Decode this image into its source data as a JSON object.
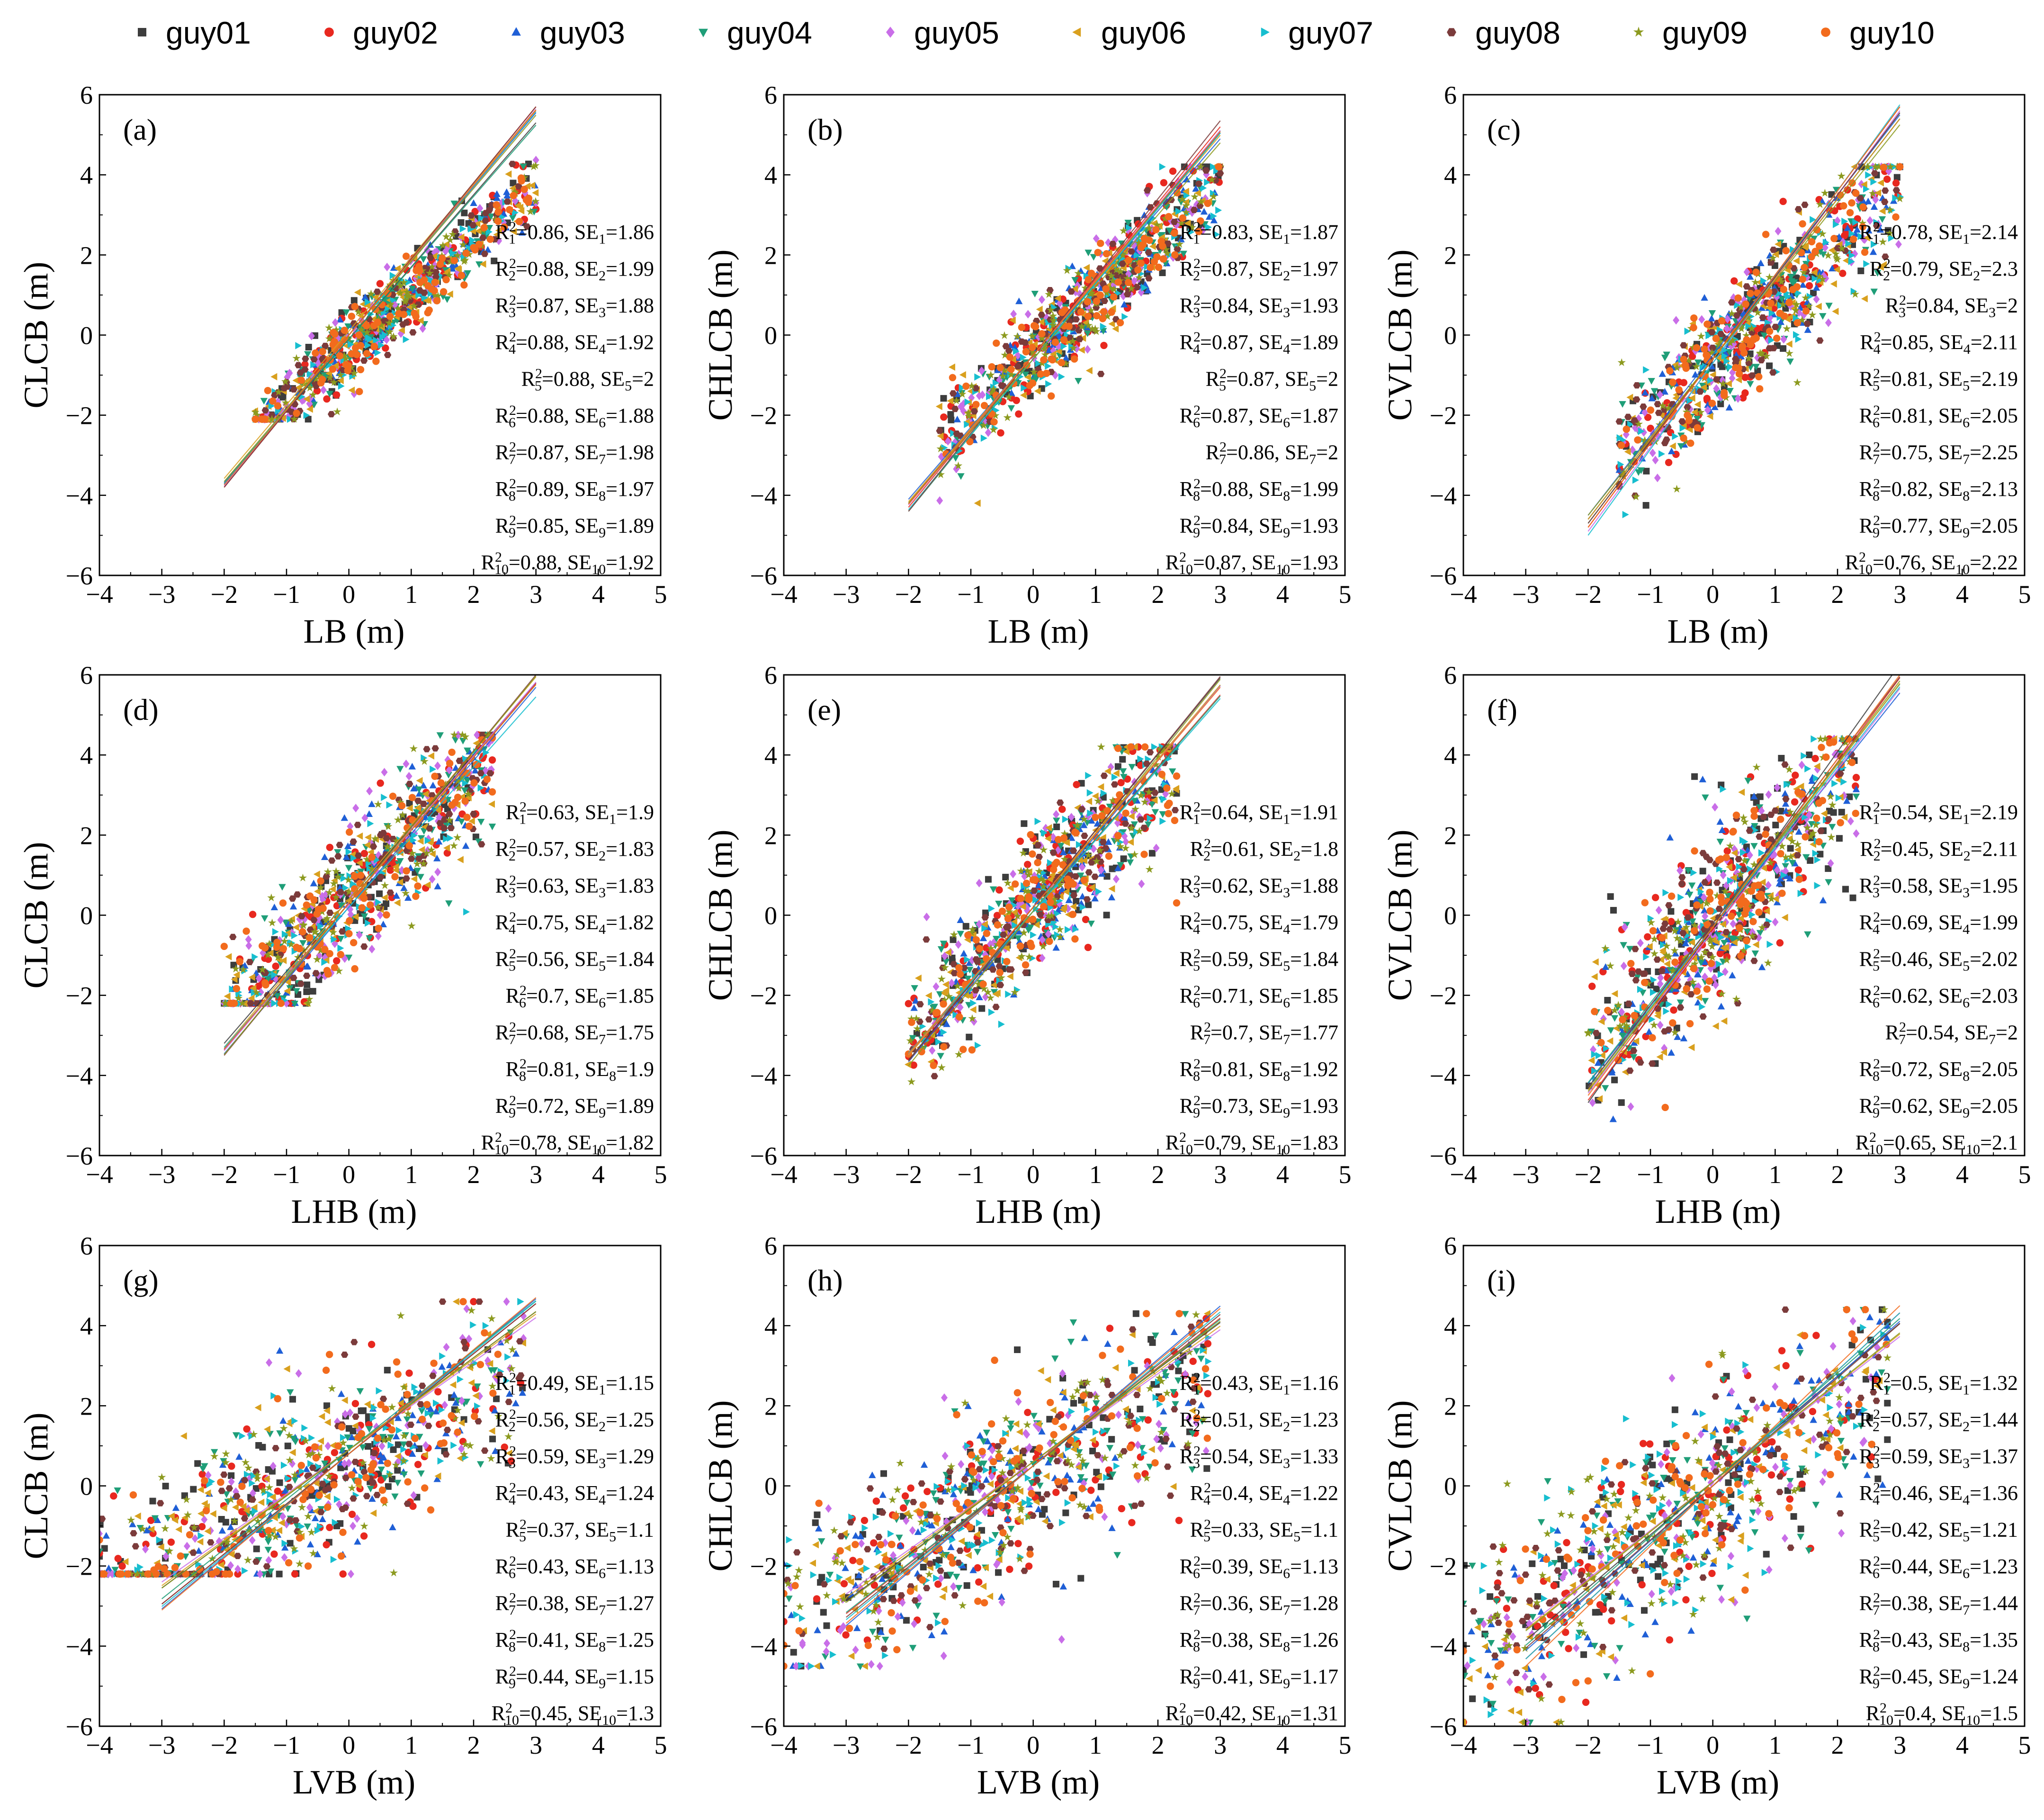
{
  "legend": {
    "series": [
      {
        "name": "guy01",
        "color": "#3d3d3d",
        "marker": "square"
      },
      {
        "name": "guy02",
        "color": "#e8281f",
        "marker": "circle"
      },
      {
        "name": "guy03",
        "color": "#1f5fd6",
        "marker": "triangle-up"
      },
      {
        "name": "guy04",
        "color": "#1f9e78",
        "marker": "triangle-down"
      },
      {
        "name": "guy05",
        "color": "#c96ee8",
        "marker": "diamond"
      },
      {
        "name": "guy06",
        "color": "#d9a01e",
        "marker": "triangle-left"
      },
      {
        "name": "guy07",
        "color": "#17becf",
        "marker": "triangle-right"
      },
      {
        "name": "guy08",
        "color": "#7b3b3b",
        "marker": "hexagon"
      },
      {
        "name": "guy09",
        "color": "#8c9a1f",
        "marker": "star"
      },
      {
        "name": "guy10",
        "color": "#f26b1d",
        "marker": "circle"
      }
    ]
  },
  "chart_data": [
    {
      "panel": "(a)",
      "type": "scatter",
      "xlabel": "LB (m)",
      "ylabel": "CLCB (m)",
      "xlim": [
        -4,
        5
      ],
      "ylim": [
        -6,
        6
      ],
      "xticks": [
        -4,
        -3,
        -2,
        -1,
        0,
        1,
        2,
        3,
        4,
        5
      ],
      "yticks": [
        -6,
        -4,
        -2,
        0,
        2,
        4,
        6
      ],
      "cloud": {
        "x_range": [
          -1.5,
          3.0
        ],
        "slope": 1.35,
        "intercept": -0.3,
        "noise": 0.45,
        "clip": [
          -2.1,
          4.5
        ]
      },
      "fit_x_range": [
        -2,
        3
      ],
      "fits": [
        {
          "R2": "0.86",
          "SE": "1.86",
          "slope": 1.8,
          "intercept": -0.1
        },
        {
          "R2": "0.88",
          "SE": "1.99",
          "slope": 1.9,
          "intercept": 0.0
        },
        {
          "R2": "0.87",
          "SE": "1.88",
          "slope": 1.85,
          "intercept": 0.0
        },
        {
          "R2": "0.88",
          "SE": "1.92",
          "slope": 1.78,
          "intercept": -0.1
        },
        {
          "R2": "0.88",
          "SE": "2",
          "slope": 1.88,
          "intercept": 0.0
        },
        {
          "R2": "0.88",
          "SE": "1.88",
          "slope": 1.84,
          "intercept": 0.1
        },
        {
          "R2": "0.87",
          "SE": "1.98",
          "slope": 1.86,
          "intercept": 0.0
        },
        {
          "R2": "0.89",
          "SE": "1.97",
          "slope": 1.9,
          "intercept": 0.0
        },
        {
          "R2": "0.85",
          "SE": "1.89",
          "slope": 1.83,
          "intercept": 0.0
        },
        {
          "R2": "0.88",
          "SE": "1.92",
          "slope": 1.87,
          "intercept": 0.0
        }
      ]
    },
    {
      "panel": "(b)",
      "type": "scatter",
      "xlabel": "LB (m)",
      "ylabel": "CHLCB (m)",
      "xlim": [
        -4,
        5
      ],
      "ylim": [
        -6,
        6
      ],
      "xticks": [
        -4,
        -3,
        -2,
        -1,
        0,
        1,
        2,
        3,
        4,
        5
      ],
      "yticks": [
        -6,
        -4,
        -2,
        0,
        2,
        4,
        6
      ],
      "cloud": {
        "x_range": [
          -1.5,
          3.0
        ],
        "slope": 1.45,
        "intercept": -0.5,
        "noise": 0.6,
        "clip": [
          -4.5,
          4.2
        ]
      },
      "fit_x_range": [
        -2,
        3
      ],
      "fits": [
        {
          "R2": "0.83",
          "SE": "1.87",
          "slope": 1.85,
          "intercept": -0.5
        },
        {
          "R2": "0.87",
          "SE": "1.97",
          "slope": 1.9,
          "intercept": -0.5
        },
        {
          "R2": "0.84",
          "SE": "1.93",
          "slope": 1.8,
          "intercept": -0.5
        },
        {
          "R2": "0.87",
          "SE": "1.89",
          "slope": 1.9,
          "intercept": -0.6
        },
        {
          "R2": "0.87",
          "SE": "2",
          "slope": 1.87,
          "intercept": -0.5
        },
        {
          "R2": "0.87",
          "SE": "1.87",
          "slope": 1.83,
          "intercept": -0.5
        },
        {
          "R2": "0.86",
          "SE": "2",
          "slope": 1.88,
          "intercept": -0.6
        },
        {
          "R2": "0.88",
          "SE": "1.99",
          "slope": 1.95,
          "intercept": -0.5
        },
        {
          "R2": "0.84",
          "SE": "1.93",
          "slope": 1.8,
          "intercept": -0.6
        },
        {
          "R2": "0.87",
          "SE": "1.93",
          "slope": 1.86,
          "intercept": -0.5
        }
      ]
    },
    {
      "panel": "(c)",
      "type": "scatter",
      "xlabel": "LB (m)",
      "ylabel": "CVLCB (m)",
      "xlim": [
        -4,
        5
      ],
      "ylim": [
        -6,
        6
      ],
      "xticks": [
        -4,
        -3,
        -2,
        -1,
        0,
        1,
        2,
        3,
        4,
        5
      ],
      "yticks": [
        -6,
        -4,
        -2,
        0,
        2,
        4,
        6
      ],
      "cloud": {
        "x_range": [
          -1.5,
          3.0
        ],
        "slope": 1.5,
        "intercept": -0.7,
        "noise": 0.8,
        "clip": [
          -5.9,
          4.2
        ]
      },
      "fit_x_range": [
        -2,
        3
      ],
      "fits": [
        {
          "R2": "0.78",
          "SE": "2.14",
          "slope": 2.0,
          "intercept": -0.6
        },
        {
          "R2": "0.79",
          "SE": "2.3",
          "slope": 2.1,
          "intercept": -0.6
        },
        {
          "R2": "0.84",
          "SE": "2",
          "slope": 2.0,
          "intercept": -0.5
        },
        {
          "R2": "0.85",
          "SE": "2.11",
          "slope": 2.05,
          "intercept": -0.6
        },
        {
          "R2": "0.81",
          "SE": "2.19",
          "slope": 2.1,
          "intercept": -0.7
        },
        {
          "R2": "0.81",
          "SE": "2.05",
          "slope": 2.0,
          "intercept": -0.6
        },
        {
          "R2": "0.75",
          "SE": "2.25",
          "slope": 2.15,
          "intercept": -0.7
        },
        {
          "R2": "0.82",
          "SE": "2.13",
          "slope": 2.05,
          "intercept": -0.6
        },
        {
          "R2": "0.77",
          "SE": "2.05",
          "slope": 1.95,
          "intercept": -0.6
        },
        {
          "R2": "0.76",
          "SE": "2.22",
          "slope": 2.1,
          "intercept": -0.6
        }
      ]
    },
    {
      "panel": "(d)",
      "type": "scatter",
      "xlabel": "LHB (m)",
      "ylabel": "CLCB (m)",
      "xlim": [
        -4,
        5
      ],
      "ylim": [
        -6,
        6
      ],
      "xticks": [
        -4,
        -3,
        -2,
        -1,
        0,
        1,
        2,
        3,
        4,
        5
      ],
      "yticks": [
        -6,
        -4,
        -2,
        0,
        2,
        4,
        6
      ],
      "cloud": {
        "x_range": [
          -2.0,
          2.3
        ],
        "slope": 1.55,
        "intercept": 0.4,
        "noise": 0.85,
        "clip": [
          -2.2,
          4.5
        ]
      },
      "fit_x_range": [
        -2,
        3
      ],
      "fits": [
        {
          "R2": "0.63",
          "SE": "1.9",
          "slope": 1.8,
          "intercept": 0.4
        },
        {
          "R2": "0.57",
          "SE": "1.83",
          "slope": 1.83,
          "intercept": 0.3
        },
        {
          "R2": "0.63",
          "SE": "1.83",
          "slope": 1.83,
          "intercept": 0.2
        },
        {
          "R2": "0.75",
          "SE": "1.82",
          "slope": 1.82,
          "intercept": 0.3
        },
        {
          "R2": "0.56",
          "SE": "1.84",
          "slope": 1.84,
          "intercept": 0.3
        },
        {
          "R2": "0.7",
          "SE": "1.85",
          "slope": 1.85,
          "intercept": 0.4
        },
        {
          "R2": "0.68",
          "SE": "1.75",
          "slope": 1.75,
          "intercept": 0.2
        },
        {
          "R2": "0.81",
          "SE": "1.9",
          "slope": 1.9,
          "intercept": 0.3
        },
        {
          "R2": "0.72",
          "SE": "1.89",
          "slope": 1.89,
          "intercept": 0.3
        },
        {
          "R2": "0.78",
          "SE": "1.82",
          "slope": 1.82,
          "intercept": 0.3
        }
      ]
    },
    {
      "panel": "(e)",
      "type": "scatter",
      "xlabel": "LHB (m)",
      "ylabel": "CHLCB (m)",
      "xlim": [
        -4,
        5
      ],
      "ylim": [
        -6,
        6
      ],
      "xticks": [
        -4,
        -3,
        -2,
        -1,
        0,
        1,
        2,
        3,
        4,
        5
      ],
      "yticks": [
        -6,
        -4,
        -2,
        0,
        2,
        4,
        6
      ],
      "cloud": {
        "x_range": [
          -2.0,
          2.3
        ],
        "slope": 1.6,
        "intercept": 0.2,
        "noise": 0.85,
        "clip": [
          -4.5,
          4.2
        ]
      },
      "fit_x_range": [
        -2,
        3
      ],
      "fits": [
        {
          "R2": "0.64",
          "SE": "1.91",
          "slope": 1.91,
          "intercept": 0.2
        },
        {
          "R2": "0.61",
          "SE": "1.8",
          "slope": 1.8,
          "intercept": 0.1
        },
        {
          "R2": "0.62",
          "SE": "1.88",
          "slope": 1.88,
          "intercept": 0.1
        },
        {
          "R2": "0.75",
          "SE": "1.79",
          "slope": 1.79,
          "intercept": 0.1
        },
        {
          "R2": "0.59",
          "SE": "1.84",
          "slope": 1.84,
          "intercept": 0.2
        },
        {
          "R2": "0.71",
          "SE": "1.85",
          "slope": 1.85,
          "intercept": 0.2
        },
        {
          "R2": "0.7",
          "SE": "1.77",
          "slope": 1.77,
          "intercept": 0.1
        },
        {
          "R2": "0.81",
          "SE": "1.92",
          "slope": 1.92,
          "intercept": 0.2
        },
        {
          "R2": "0.73",
          "SE": "1.93",
          "slope": 1.93,
          "intercept": 0.1
        },
        {
          "R2": "0.79",
          "SE": "1.83",
          "slope": 1.83,
          "intercept": 0.2
        }
      ]
    },
    {
      "panel": "(f)",
      "type": "scatter",
      "xlabel": "LHB (m)",
      "ylabel": "CVLCB (m)",
      "xlim": [
        -4,
        5
      ],
      "ylim": [
        -6,
        6
      ],
      "xticks": [
        -4,
        -3,
        -2,
        -1,
        0,
        1,
        2,
        3,
        4,
        5
      ],
      "yticks": [
        -6,
        -4,
        -2,
        0,
        2,
        4,
        6
      ],
      "cloud": {
        "x_range": [
          -2.0,
          2.3
        ],
        "slope": 1.65,
        "intercept": -0.2,
        "noise": 1.1,
        "clip": [
          -5.9,
          4.4
        ]
      },
      "fit_x_range": [
        -2,
        3
      ],
      "fits": [
        {
          "R2": "0.54",
          "SE": "2.19",
          "slope": 2.19,
          "intercept": -0.3
        },
        {
          "R2": "0.45",
          "SE": "2.11",
          "slope": 2.11,
          "intercept": -0.4
        },
        {
          "R2": "0.58",
          "SE": "1.95",
          "slope": 1.95,
          "intercept": -0.3
        },
        {
          "R2": "0.69",
          "SE": "1.99",
          "slope": 1.99,
          "intercept": -0.2
        },
        {
          "R2": "0.46",
          "SE": "2.02",
          "slope": 2.02,
          "intercept": -0.4
        },
        {
          "R2": "0.62",
          "SE": "2.03",
          "slope": 2.03,
          "intercept": -0.3
        },
        {
          "R2": "0.54",
          "SE": "2",
          "slope": 2.0,
          "intercept": -0.3
        },
        {
          "R2": "0.72",
          "SE": "2.05",
          "slope": 2.05,
          "intercept": -0.2
        },
        {
          "R2": "0.62",
          "SE": "2.05",
          "slope": 2.05,
          "intercept": -0.3
        },
        {
          "R2": "0.65",
          "SE": "2.1",
          "slope": 2.1,
          "intercept": -0.3
        }
      ]
    },
    {
      "panel": "(g)",
      "type": "scatter",
      "xlabel": "LVB (m)",
      "ylabel": "CLCB (m)",
      "xlim": [
        -4,
        5
      ],
      "ylim": [
        -6,
        6
      ],
      "xticks": [
        -4,
        -3,
        -2,
        -1,
        0,
        1,
        2,
        3,
        4,
        5
      ],
      "yticks": [
        -6,
        -4,
        -2,
        0,
        2,
        4,
        6
      ],
      "cloud": {
        "x_range": [
          -4.0,
          2.8
        ],
        "slope": 0.85,
        "intercept": 0.6,
        "noise": 1.15,
        "clip": [
          -2.2,
          4.6
        ]
      },
      "fit_x_range": [
        -3,
        3
      ],
      "fits": [
        {
          "R2": "0.49",
          "SE": "1.15",
          "slope": 1.15,
          "intercept": 0.9
        },
        {
          "R2": "0.56",
          "SE": "1.25",
          "slope": 1.25,
          "intercept": 0.8
        },
        {
          "R2": "0.59",
          "SE": "1.29",
          "slope": 1.29,
          "intercept": 0.8
        },
        {
          "R2": "0.43",
          "SE": "1.24",
          "slope": 1.24,
          "intercept": 0.9
        },
        {
          "R2": "0.37",
          "SE": "1.1",
          "slope": 1.1,
          "intercept": 0.9
        },
        {
          "R2": "0.43",
          "SE": "1.13",
          "slope": 1.13,
          "intercept": 0.9
        },
        {
          "R2": "0.38",
          "SE": "1.27",
          "slope": 1.27,
          "intercept": 0.8
        },
        {
          "R2": "0.41",
          "SE": "1.25",
          "slope": 1.25,
          "intercept": 0.8
        },
        {
          "R2": "0.44",
          "SE": "1.15",
          "slope": 1.15,
          "intercept": 0.9
        },
        {
          "R2": "0.45",
          "SE": "1.3",
          "slope": 1.3,
          "intercept": 0.8
        }
      ]
    },
    {
      "panel": "(h)",
      "type": "scatter",
      "xlabel": "LVB (m)",
      "ylabel": "CHLCB (m)",
      "xlim": [
        -4,
        5
      ],
      "ylim": [
        -6,
        6
      ],
      "xticks": [
        -4,
        -3,
        -2,
        -1,
        0,
        1,
        2,
        3,
        4,
        5
      ],
      "yticks": [
        -6,
        -4,
        -2,
        0,
        2,
        4,
        6
      ],
      "cloud": {
        "x_range": [
          -4.0,
          2.8
        ],
        "slope": 0.9,
        "intercept": 0.2,
        "noise": 1.2,
        "clip": [
          -4.5,
          4.3
        ]
      },
      "fit_x_range": [
        -3,
        3
      ],
      "fits": [
        {
          "R2": "0.43",
          "SE": "1.16",
          "slope": 1.16,
          "intercept": 0.6
        },
        {
          "R2": "0.51",
          "SE": "1.23",
          "slope": 1.23,
          "intercept": 0.5
        },
        {
          "R2": "0.54",
          "SE": "1.33",
          "slope": 1.33,
          "intercept": 0.5
        },
        {
          "R2": "0.4",
          "SE": "1.22",
          "slope": 1.22,
          "intercept": 0.5
        },
        {
          "R2": "0.33",
          "SE": "1.1",
          "slope": 1.1,
          "intercept": 0.6
        },
        {
          "R2": "0.39",
          "SE": "1.13",
          "slope": 1.13,
          "intercept": 0.6
        },
        {
          "R2": "0.36",
          "SE": "1.28",
          "slope": 1.28,
          "intercept": 0.5
        },
        {
          "R2": "0.38",
          "SE": "1.26",
          "slope": 1.26,
          "intercept": 0.5
        },
        {
          "R2": "0.41",
          "SE": "1.17",
          "slope": 1.17,
          "intercept": 0.6
        },
        {
          "R2": "0.42",
          "SE": "1.31",
          "slope": 1.31,
          "intercept": 0.5
        }
      ]
    },
    {
      "panel": "(i)",
      "type": "scatter",
      "xlabel": "LVB (m)",
      "ylabel": "CVLCB (m)",
      "xlim": [
        -4,
        5
      ],
      "ylim": [
        -6,
        6
      ],
      "xticks": [
        -4,
        -3,
        -2,
        -1,
        0,
        1,
        2,
        3,
        4,
        5
      ],
      "yticks": [
        -6,
        -4,
        -2,
        0,
        2,
        4,
        6
      ],
      "cloud": {
        "x_range": [
          -4.0,
          2.8
        ],
        "slope": 1.05,
        "intercept": -0.2,
        "noise": 1.3,
        "clip": [
          -5.9,
          4.4
        ]
      },
      "fit_x_range": [
        -3,
        3
      ],
      "fits": [
        {
          "R2": "0.5",
          "SE": "1.32",
          "slope": 1.32,
          "intercept": 0.1
        },
        {
          "R2": "0.57",
          "SE": "1.44",
          "slope": 1.44,
          "intercept": 0.0
        },
        {
          "R2": "0.59",
          "SE": "1.37",
          "slope": 1.37,
          "intercept": 0.0
        },
        {
          "R2": "0.46",
          "SE": "1.36",
          "slope": 1.36,
          "intercept": 0.1
        },
        {
          "R2": "0.42",
          "SE": "1.21",
          "slope": 1.21,
          "intercept": 0.1
        },
        {
          "R2": "0.44",
          "SE": "1.23",
          "slope": 1.23,
          "intercept": 0.1
        },
        {
          "R2": "0.38",
          "SE": "1.44",
          "slope": 1.44,
          "intercept": 0.0
        },
        {
          "R2": "0.43",
          "SE": "1.35",
          "slope": 1.35,
          "intercept": 0.0
        },
        {
          "R2": "0.45",
          "SE": "1.24",
          "slope": 1.24,
          "intercept": 0.1
        },
        {
          "R2": "0.4",
          "SE": "1.5",
          "slope": 1.5,
          "intercept": 0.0
        }
      ]
    }
  ]
}
